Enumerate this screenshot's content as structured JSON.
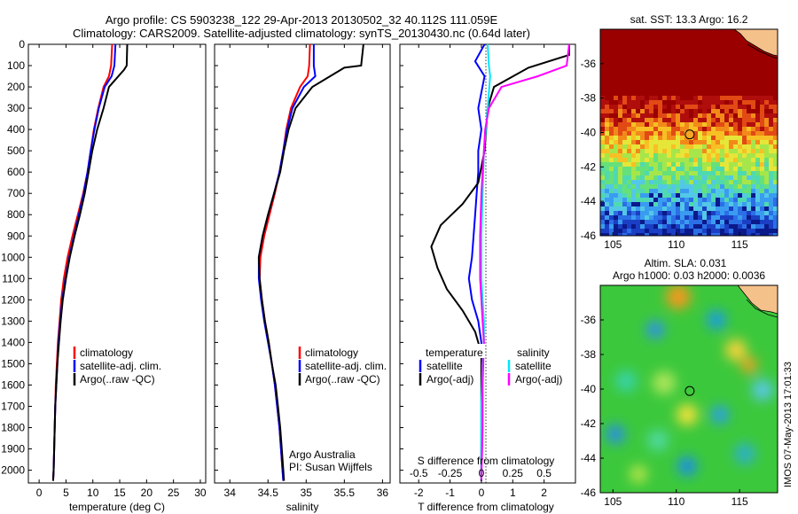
{
  "header": {
    "line1": "Argo profile: CS 5903238_122 29-Apr-2013 20130502_32 40.112S 111.059E",
    "line2": "Climatology: CARS2009. Satellite-adjusted climatology: synTS_20130430.nc (0.64d later)"
  },
  "colors": {
    "climatology": "#ff0000",
    "satellite": "#0000ff",
    "argo": "#000000",
    "sal_satellite": "#00e5ff",
    "sal_argo": "#ff00ff"
  },
  "chart_data": [
    {
      "type": "line",
      "id": "temperature",
      "xlabel": "temperature (deg C)",
      "ylabel": "",
      "xlim": [
        -2,
        31
      ],
      "ylim": [
        2060,
        0
      ],
      "xticks": [
        0,
        5,
        10,
        15,
        20,
        25,
        30
      ],
      "yticks": [
        0,
        100,
        200,
        300,
        400,
        500,
        600,
        700,
        800,
        900,
        1000,
        1100,
        1200,
        1300,
        1400,
        1500,
        1600,
        1700,
        1800,
        1900,
        2000
      ],
      "legend": [
        "climatology",
        "satellite-adj. clim.",
        "Argo(..raw -QC)"
      ],
      "series": [
        {
          "name": "climatology",
          "color": "#ff0000",
          "x": [
            13.6,
            13.4,
            13.0,
            12.0,
            11.0,
            10.2,
            9.6,
            9.0,
            8.2,
            7.2,
            6.2,
            5.3,
            4.6,
            4.1,
            3.8,
            3.5,
            3.3,
            3.1,
            3.0,
            2.9,
            2.8,
            2.7,
            2.6
          ],
          "y": [
            0,
            100,
            150,
            200,
            300,
            400,
            500,
            600,
            700,
            800,
            900,
            1000,
            1100,
            1200,
            1300,
            1400,
            1500,
            1600,
            1700,
            1800,
            1900,
            2000,
            2050
          ]
        },
        {
          "name": "satellite-adj. clim.",
          "color": "#0000ff",
          "x": [
            14.2,
            14.0,
            13.5,
            12.2,
            11.1,
            10.3,
            9.6,
            9.0,
            8.3,
            7.4,
            6.5,
            5.6,
            4.9,
            4.3,
            3.9,
            3.6,
            3.4,
            3.2,
            3.0,
            2.9,
            2.8,
            2.7,
            2.6
          ],
          "y": [
            0,
            100,
            150,
            200,
            300,
            400,
            500,
            600,
            700,
            800,
            900,
            1000,
            1100,
            1200,
            1300,
            1400,
            1500,
            1600,
            1700,
            1800,
            1900,
            2000,
            2050
          ]
        },
        {
          "name": "Argo(..raw -QC)",
          "color": "#000000",
          "x": [
            16.4,
            16.3,
            15.8,
            13.0,
            12.0,
            10.8,
            9.9,
            9.2,
            8.5,
            7.6,
            6.6,
            5.7,
            5.0,
            4.4,
            4.0,
            3.7,
            3.4,
            3.2,
            3.0,
            2.9,
            2.8,
            2.7,
            2.6
          ],
          "y": [
            0,
            100,
            120,
            200,
            300,
            400,
            500,
            600,
            700,
            800,
            900,
            1000,
            1100,
            1200,
            1300,
            1400,
            1500,
            1600,
            1700,
            1800,
            1900,
            2000,
            2050
          ]
        }
      ]
    },
    {
      "type": "line",
      "id": "salinity",
      "xlabel": "salinity",
      "ylabel": "",
      "xlim": [
        33.8,
        36.1
      ],
      "ylim": [
        2060,
        0
      ],
      "xticks": [
        34,
        34.5,
        35,
        35.5,
        36
      ],
      "xticklabels": [
        "34",
        "34.5",
        "35",
        "35.5",
        "36"
      ],
      "legend": [
        "climatology",
        "satellite-adj. clim.",
        "Argo(..raw -QC)"
      ],
      "annotation": [
        "Argo Australia",
        "PI: Susan Wijffels"
      ],
      "series": [
        {
          "name": "climatology",
          "color": "#ff0000",
          "x": [
            35.05,
            35.04,
            35.02,
            34.92,
            34.8,
            34.74,
            34.7,
            34.65,
            34.59,
            34.52,
            34.45,
            34.4,
            34.39,
            34.42,
            34.46,
            34.51,
            34.55,
            34.59,
            34.62,
            34.65,
            34.67,
            34.69,
            34.7
          ],
          "y": [
            0,
            100,
            150,
            200,
            300,
            400,
            500,
            600,
            700,
            800,
            900,
            1000,
            1100,
            1200,
            1300,
            1400,
            1500,
            1600,
            1700,
            1800,
            1900,
            2000,
            2050
          ]
        },
        {
          "name": "satellite-adj. clim.",
          "color": "#0000ff",
          "x": [
            35.1,
            35.1,
            35.12,
            34.97,
            34.82,
            34.75,
            34.7,
            34.65,
            34.58,
            34.5,
            34.43,
            34.38,
            34.38,
            34.41,
            34.45,
            34.5,
            34.55,
            34.59,
            34.62,
            34.65,
            34.67,
            34.69,
            34.7
          ],
          "y": [
            0,
            100,
            150,
            200,
            300,
            400,
            500,
            600,
            700,
            800,
            900,
            1000,
            1100,
            1200,
            1300,
            1400,
            1500,
            1600,
            1700,
            1800,
            1900,
            2000,
            2050
          ]
        },
        {
          "name": "Argo(..raw -QC)",
          "color": "#000000",
          "x": [
            35.75,
            35.72,
            35.5,
            35.08,
            34.86,
            34.77,
            34.71,
            34.66,
            34.58,
            34.5,
            34.43,
            34.38,
            34.39,
            34.42,
            34.46,
            34.51,
            34.55,
            34.6,
            34.63,
            34.66,
            34.68,
            34.7,
            34.71
          ],
          "y": [
            0,
            100,
            110,
            200,
            300,
            400,
            500,
            600,
            700,
            800,
            900,
            1000,
            1100,
            1200,
            1300,
            1400,
            1500,
            1600,
            1700,
            1800,
            1900,
            2000,
            2050
          ]
        }
      ]
    },
    {
      "type": "line",
      "id": "differences",
      "xlabel": "T difference from climatology",
      "xlabel_top": "S difference from climatology",
      "xlim": [
        -2.6,
        3.0
      ],
      "ylim": [
        2060,
        0
      ],
      "xticks": [
        -2,
        -1,
        0,
        1,
        2
      ],
      "xticks_S": [
        -0.5,
        -0.25,
        0,
        0.25,
        0.5
      ],
      "xticklabels_S": [
        "-0.5",
        "-0.25",
        "0",
        "0.25",
        "0.5"
      ],
      "legend_T_title": "temperature",
      "legend_S_title": "salinity",
      "legend_T": [
        "satellite",
        "Argo(-adj)"
      ],
      "legend_S": [
        "satellite",
        "Argo(-adj)"
      ],
      "series": [
        {
          "name": "T satellite",
          "color": "#0000ff",
          "x": [
            0.1,
            -0.2,
            0.1,
            -0.1,
            0.0,
            -0.1,
            -0.1,
            -0.15,
            -0.2,
            -0.25,
            -0.3,
            -0.4,
            -0.3,
            -0.1,
            0.0,
            0.0,
            0.0,
            0.0,
            0.0,
            0.0
          ],
          "y": [
            0,
            80,
            150,
            300,
            400,
            500,
            600,
            700,
            800,
            900,
            1000,
            1100,
            1200,
            1300,
            1400,
            1600,
            1800,
            1900,
            2000,
            2050
          ]
        },
        {
          "name": "T Argo(-adj)",
          "color": "#000000",
          "x": [
            2.8,
            2.8,
            1.5,
            0.4,
            0.2,
            0.1,
            -0.1,
            -0.6,
            -1.3,
            -1.6,
            -1.4,
            -1.1,
            -0.6,
            -0.2,
            0.0,
            0.0,
            0.0,
            0.0
          ],
          "y": [
            0,
            50,
            110,
            200,
            300,
            500,
            650,
            750,
            850,
            950,
            1050,
            1150,
            1250,
            1350,
            1450,
            1700,
            1900,
            2050
          ]
        },
        {
          "name": "S satellite",
          "color": "#00e5ff",
          "x": [
            0.05,
            0.06,
            0.07,
            0.05,
            0.02,
            0.01,
            0.0,
            0.0,
            0.0,
            0.01,
            0.02,
            0.02,
            0.01,
            0.0,
            0.0,
            0.0
          ],
          "y": [
            0,
            100,
            150,
            300,
            500,
            700,
            900,
            1000,
            1100,
            1200,
            1300,
            1400,
            1500,
            1700,
            1900,
            2050
          ]
        },
        {
          "name": "S Argo(-adj)",
          "color": "#ff00ff",
          "x": [
            0.7,
            0.68,
            0.45,
            0.16,
            0.06,
            0.03,
            0.02,
            0.0,
            -0.01,
            -0.01,
            0.0,
            0.01,
            0.02,
            0.01,
            0.01,
            0.0
          ],
          "y": [
            0,
            100,
            150,
            200,
            300,
            400,
            500,
            700,
            900,
            1100,
            1200,
            1300,
            1400,
            1600,
            1800,
            2050
          ]
        }
      ]
    },
    {
      "type": "heatmap",
      "id": "sst",
      "title": "sat. SST: 13.3 Argo: 16.2",
      "xlim": [
        104,
        118
      ],
      "ylim": [
        -46,
        -34
      ],
      "xticks": [
        105,
        110,
        115
      ],
      "yticks": [
        -36,
        -38,
        -40,
        -42,
        -44,
        -46
      ],
      "marker": {
        "lon": 111.059,
        "lat": -40.112
      }
    },
    {
      "type": "heatmap",
      "id": "sla",
      "title": "Altim. SLA: 0.031",
      "subtitle": "Argo h1000: 0.03 h2000: 0.0036",
      "xlim": [
        104,
        118
      ],
      "ylim": [
        -46,
        -34
      ],
      "xticks": [
        105,
        110,
        115
      ],
      "yticks": [
        -36,
        -38,
        -40,
        -42,
        -44,
        -46
      ],
      "marker": {
        "lon": 111.059,
        "lat": -40.112
      }
    }
  ],
  "side_label": "IMOS 07-May-2013 17:01:33"
}
